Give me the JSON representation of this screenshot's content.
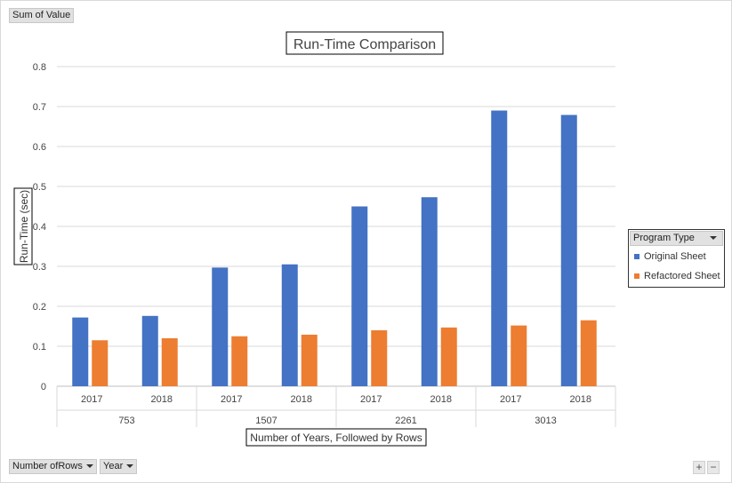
{
  "value_field": "Sum of Value",
  "filters": [
    {
      "label": "Number ofRows"
    },
    {
      "label": "Year"
    }
  ],
  "legend": {
    "title": "Program Type"
  },
  "zoom": {
    "plus": "+",
    "minus": "−"
  },
  "colors": {
    "original": "#4472c4",
    "refactored": "#ed7d31"
  },
  "chart_data": {
    "type": "bar",
    "title": "Run-Time Comparison",
    "xlabel": "Number of Years, Followed by Rows",
    "ylabel": "Run-Time (sec)",
    "ylim": [
      0,
      0.8
    ],
    "yticks": [
      "0",
      "0.1",
      "0.2",
      "0.3",
      "0.4",
      "0.5",
      "0.6",
      "0.7",
      "0.8"
    ],
    "groups": [
      {
        "label": "753",
        "categories": [
          "2017",
          "2018"
        ]
      },
      {
        "label": "1507",
        "categories": [
          "2017",
          "2018"
        ]
      },
      {
        "label": "2261",
        "categories": [
          "2017",
          "2018"
        ]
      },
      {
        "label": "3013",
        "categories": [
          "2017",
          "2018"
        ]
      }
    ],
    "series": [
      {
        "name": "Original Sheet",
        "values": [
          0.172,
          0.176,
          0.297,
          0.305,
          0.45,
          0.473,
          0.69,
          0.679
        ]
      },
      {
        "name": "Refactored Sheet",
        "values": [
          0.115,
          0.12,
          0.125,
          0.129,
          0.14,
          0.147,
          0.152,
          0.165
        ]
      }
    ],
    "grid": true,
    "legend_position": "right"
  }
}
